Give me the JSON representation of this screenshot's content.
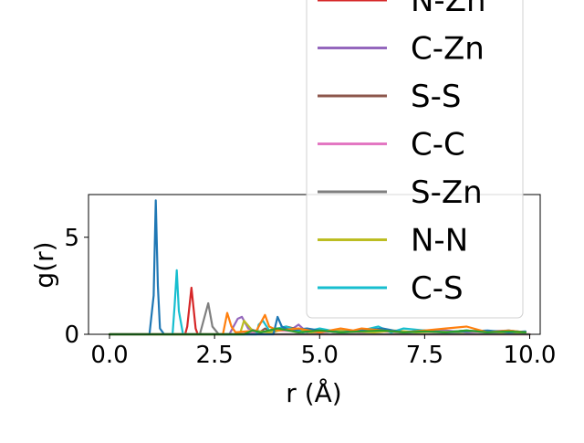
{
  "chart_data": {
    "type": "line",
    "xlabel": "r (Å)",
    "ylabel": "g(r)",
    "xlim": [
      -0.5,
      10.25
    ],
    "ylim": [
      0,
      7.2
    ],
    "x_ticks": [
      0.0,
      2.5,
      5.0,
      7.5,
      10.0
    ],
    "x_tick_labels": [
      "0.0",
      "2.5",
      "5.0",
      "7.5",
      "10.0"
    ],
    "y_ticks": [
      0,
      5
    ],
    "y_tick_labels": [
      "0",
      "5"
    ],
    "grid": false,
    "legend_position": "upper right (extends above plot area)",
    "series": [
      {
        "name": "N-Zn",
        "color": "#d62728",
        "x": [
          0,
          1.8,
          1.85,
          1.95,
          2.05,
          2.1,
          10
        ],
        "y": [
          0,
          0,
          0.4,
          2.4,
          0.3,
          0,
          0
        ]
      },
      {
        "name": "C-Zn",
        "color": "#9467bd",
        "x": [
          0,
          2.85,
          2.95,
          3.05,
          3.15,
          3.3,
          3.6,
          4.0,
          4.3,
          4.5,
          4.6,
          4.7,
          5.0,
          5.5,
          6.0,
          6.5,
          7.0,
          7.5,
          8.0,
          8.5,
          9.0,
          9.5,
          9.9
        ],
        "y": [
          0,
          0,
          0.4,
          0.8,
          0.9,
          0.3,
          0.1,
          0.3,
          0.2,
          0.5,
          0.3,
          0.1,
          0.2,
          0.1,
          0.15,
          0.2,
          0.1,
          0.15,
          0.2,
          0.1,
          0.15,
          0.2,
          0.1
        ]
      },
      {
        "name": "S-S",
        "color": "#8c564b",
        "x": [
          0,
          3.5,
          3.7,
          3.9,
          4.2,
          4.6,
          5.0,
          5.5,
          6.0,
          6.5,
          7.0,
          7.5,
          8.0,
          8.5,
          9.0,
          9.5,
          9.9
        ],
        "y": [
          0,
          0,
          0.3,
          0.1,
          0.4,
          0.2,
          0.1,
          0.2,
          0.1,
          0.2,
          0.1,
          0.15,
          0.1,
          0.2,
          0.1,
          0.15,
          0.1
        ]
      },
      {
        "name": "C-C",
        "color": "#e377c2",
        "x": [
          0,
          3.0,
          3.5,
          4.0,
          4.5,
          5.0,
          5.5,
          6.0,
          6.5,
          7.0,
          7.5,
          8.0,
          8.5,
          9.0,
          9.5,
          9.9
        ],
        "y": [
          0,
          0,
          0.1,
          0.2,
          0.15,
          0.1,
          0.2,
          0.1,
          0.15,
          0.1,
          0.2,
          0.1,
          0.15,
          0.1,
          0.1,
          0.1
        ]
      },
      {
        "name": "S-Zn",
        "color": "#7f7f7f",
        "x": [
          0,
          2.15,
          2.25,
          2.35,
          2.45,
          2.6,
          10
        ],
        "y": [
          0,
          0,
          0.8,
          1.6,
          0.4,
          0,
          0
        ]
      },
      {
        "name": "N-N",
        "color": "#bcbd22",
        "x": [
          0,
          3.1,
          3.2,
          3.4,
          3.8,
          4.3,
          4.8,
          5.3,
          5.8,
          6.3,
          6.8,
          7.3,
          7.8,
          8.3,
          8.8,
          9.3,
          9.9
        ],
        "y": [
          0,
          0,
          0.7,
          0.2,
          0.1,
          0.3,
          0.1,
          0.2,
          0.15,
          0.1,
          0.2,
          0.1,
          0.15,
          0.1,
          0.2,
          0.1,
          0.1
        ]
      },
      {
        "name": "C-S",
        "color": "#17becf",
        "x": [
          0,
          1.5,
          1.55,
          1.6,
          1.65,
          1.75,
          3.5,
          3.55,
          3.65,
          3.8,
          4.2,
          4.6,
          5.0,
          5.5,
          6.0,
          6.4,
          6.7,
          7.0,
          7.5,
          8.0,
          8.5,
          9.0,
          9.5,
          9.9
        ],
        "y": [
          0,
          0,
          1.5,
          3.3,
          1.2,
          0,
          0,
          0.5,
          0.7,
          0.2,
          0.4,
          0.1,
          0.3,
          0.1,
          0.2,
          0.4,
          0.1,
          0.3,
          0.2,
          0.1,
          0.2,
          0.1,
          0.2,
          0.1
        ]
      },
      {
        "color": "#1f77b4",
        "x": [
          0,
          0.95,
          1.05,
          1.1,
          1.15,
          1.2,
          1.3,
          3.9,
          4.0,
          4.1,
          4.3,
          4.7,
          5.0,
          5.5,
          6.0,
          6.5,
          7.0,
          7.5,
          8.0,
          8.5,
          9.0,
          9.5,
          9.9
        ],
        "y": [
          0,
          0,
          2.0,
          6.9,
          2.5,
          0.3,
          0,
          0,
          0.9,
          0.4,
          0.2,
          0.3,
          0.2,
          0.1,
          0.2,
          0.3,
          0.1,
          0.2,
          0.1,
          0.15,
          0.2,
          0.1,
          0.15
        ]
      },
      {
        "color": "#ff7f0e",
        "x": [
          0,
          2.7,
          2.8,
          2.9,
          3.0,
          3.5,
          3.7,
          3.8,
          4.0,
          4.5,
          5.0,
          5.5,
          5.8,
          6.0,
          6.5,
          7.0,
          7.5,
          8.0,
          8.5,
          9.0,
          9.5,
          9.9
        ],
        "y": [
          0,
          0,
          1.1,
          0.4,
          0.1,
          0.2,
          1.0,
          0.4,
          0.2,
          0.3,
          0.1,
          0.3,
          0.2,
          0.3,
          0.2,
          0.1,
          0.2,
          0.3,
          0.4,
          0.1,
          0.2,
          0.1
        ]
      },
      {
        "color": "#2ca02c",
        "x": [
          0,
          3.2,
          3.4,
          3.6,
          4.0,
          4.5,
          5.0,
          5.5,
          6.0,
          6.5,
          7.0,
          7.5,
          8.0,
          8.5,
          9.0,
          9.5,
          9.9
        ],
        "y": [
          0,
          0,
          0.2,
          0.1,
          0.3,
          0.1,
          0.2,
          0.1,
          0.15,
          0.2,
          0.1,
          0.15,
          0.1,
          0.2,
          0.1,
          0.15,
          0.1
        ]
      }
    ]
  }
}
